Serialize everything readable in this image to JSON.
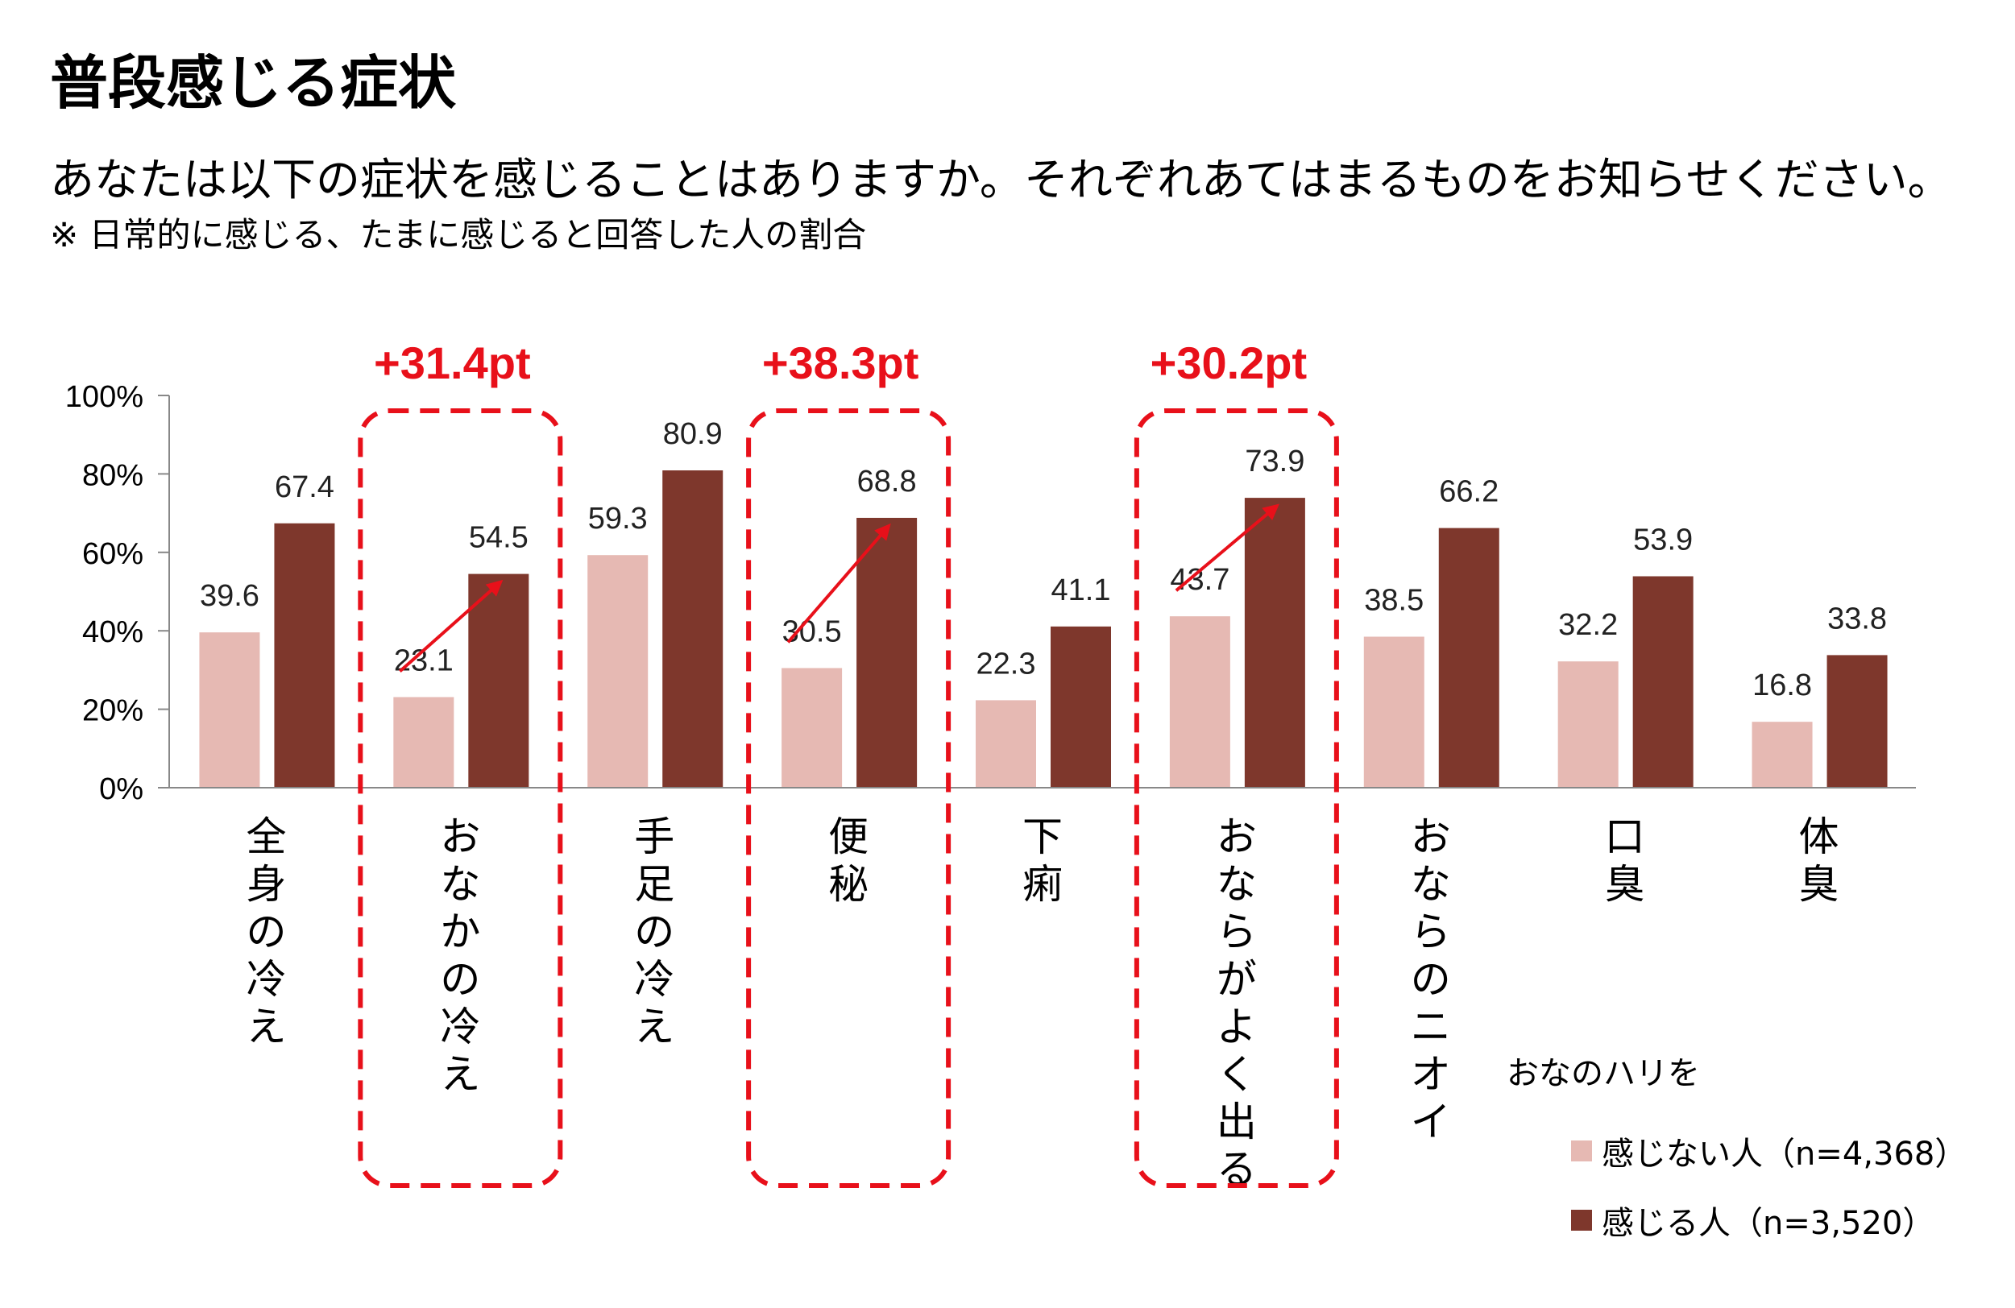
{
  "title": "普段感じる症状",
  "question": "あなたは以下の症状を感じることはありますか。それぞれあてはまるものをお知らせください。",
  "note": "※ 日常的に感じる、たまに感じると回答した人の割合",
  "colors": {
    "light": "#e6b9b3",
    "dark": "#7e372c",
    "highlight": "#e8101a",
    "axis": "#888888"
  },
  "chart_data": {
    "type": "bar",
    "categories": [
      "全身の冷え",
      "おなかの冷え",
      "手足の冷え",
      "便秘",
      "下痢",
      "おならがよく出る",
      "おならのニオイ",
      "口臭",
      "体臭"
    ],
    "series": [
      {
        "name": "感じない人（n=4,368）",
        "values": [
          39.6,
          23.1,
          59.3,
          30.5,
          22.3,
          43.7,
          38.5,
          32.2,
          16.8
        ]
      },
      {
        "name": "感じる人（n=3,520）",
        "values": [
          67.4,
          54.5,
          80.9,
          68.8,
          41.1,
          73.9,
          66.2,
          53.9,
          33.8
        ]
      }
    ],
    "yticks": [
      "0%",
      "20%",
      "40%",
      "60%",
      "80%",
      "100%"
    ],
    "ylim": [
      0,
      100
    ],
    "legend_title": "おなのハリを",
    "legend_position": "bottom-right",
    "annotations": [
      {
        "category": "おなかの冷え",
        "text": "+31.4pt"
      },
      {
        "category": "便秘",
        "text": "+38.3pt"
      },
      {
        "category": "おならがよく出る",
        "text": "+30.2pt"
      }
    ]
  }
}
